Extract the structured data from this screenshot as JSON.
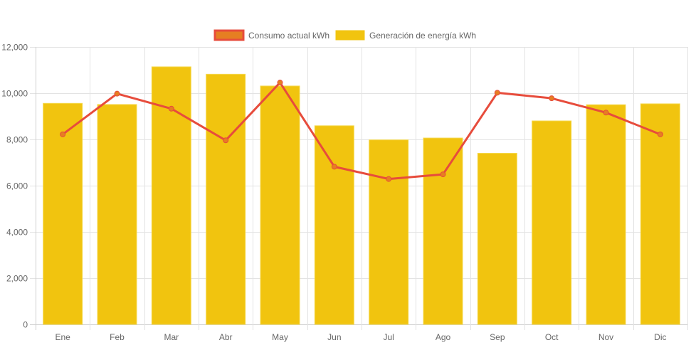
{
  "chart_data": {
    "type": "bar",
    "title": "",
    "xlabel": "",
    "ylabel": "",
    "categories": [
      "Ene",
      "Feb",
      "Mar",
      "Abr",
      "May",
      "Jun",
      "Jul",
      "Ago",
      "Sep",
      "Oct",
      "Nov",
      "Dic"
    ],
    "ylim": [
      0,
      12000
    ],
    "yticks": [
      0,
      2000,
      4000,
      6000,
      8000,
      10000,
      12000
    ],
    "ytick_labels": [
      "0",
      "2,000",
      "4,000",
      "6,000",
      "8,000",
      "10,000",
      "12,000"
    ],
    "grid": true,
    "legend_position": "top-center",
    "series": [
      {
        "name": "Consumo actual kWh",
        "type": "line",
        "color": "#e74c3c",
        "point_color": "#e67e22",
        "values": [
          8220,
          9980,
          9330,
          7960,
          10460,
          6820,
          6290,
          6490,
          10020,
          9780,
          9160,
          8220
        ]
      },
      {
        "name": "Generación de energía kWh",
        "type": "bar",
        "color": "#f1c40f",
        "values": [
          9560,
          9510,
          11140,
          10820,
          10310,
          8590,
          7980,
          8060,
          7400,
          8800,
          9500,
          9540
        ]
      }
    ]
  },
  "legend": [
    {
      "label": "Consumo actual kWh",
      "fill": "#e67e22",
      "stroke": "#e74c3c"
    },
    {
      "label": "Generación de energía kWh",
      "fill": "#f1c40f",
      "stroke": "#f1c40f"
    }
  ]
}
